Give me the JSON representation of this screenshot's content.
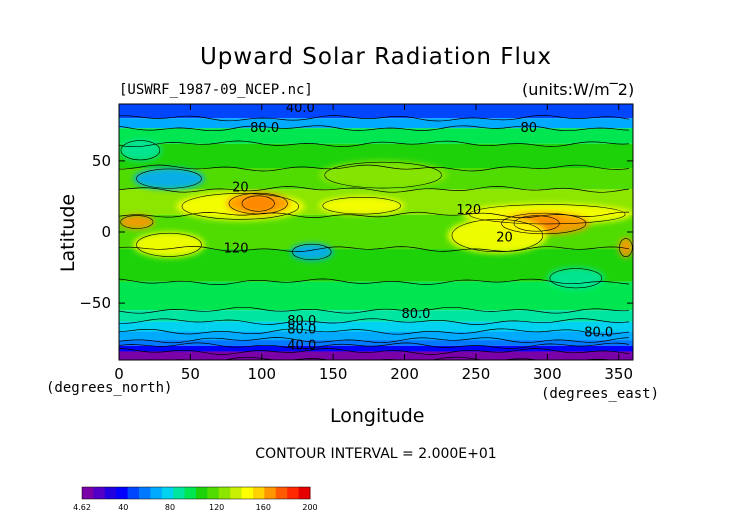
{
  "title": "Upward Solar Radiation Flux",
  "source_label": "[USWRF_1987-09_NCEP.nc]",
  "units_label": "(units:W/m^2)",
  "contour_interval_label": "CONTOUR INTERVAL = 2.000E+01",
  "xunit_left": "(degrees_north)",
  "xunit_right": "(degrees_east)",
  "chart_data": {
    "type": "heatmap",
    "title": "Upward Solar Radiation Flux",
    "xlabel": "Longitude",
    "ylabel": "Latitude",
    "xlim": [
      0,
      360
    ],
    "ylim": [
      -90,
      90
    ],
    "x_ticks": [
      0,
      50,
      100,
      150,
      200,
      250,
      300,
      350
    ],
    "y_ticks": [
      50,
      0,
      -50
    ],
    "y_tick_labels": [
      "50",
      "0",
      "−50"
    ],
    "contour_labels": [
      {
        "text": "40.0",
        "lon": 127,
        "lat": 88
      },
      {
        "text": "80.0",
        "lon": 102,
        "lat": 74
      },
      {
        "text": "80",
        "lon": 287,
        "lat": 74
      },
      {
        "text": "20",
        "lon": 85,
        "lat": 32
      },
      {
        "text": "120",
        "lon": 245,
        "lat": 16
      },
      {
        "text": "20",
        "lon": 270,
        "lat": -3
      },
      {
        "text": "120",
        "lon": 82,
        "lat": -11
      },
      {
        "text": "80.0",
        "lon": 208,
        "lat": -57
      },
      {
        "text": "80.0",
        "lon": 128,
        "lat": -62
      },
      {
        "text": "80.0",
        "lon": 128,
        "lat": -68
      },
      {
        "text": "80.0",
        "lon": 336,
        "lat": -70
      },
      {
        "text": "40.0",
        "lon": 128,
        "lat": -79
      }
    ],
    "grid": false,
    "colorbar": {
      "tick_labels": [
        "4.62",
        "40",
        "80",
        "120",
        "160",
        "200"
      ],
      "tick_values": [
        4.62,
        40,
        80,
        120,
        160,
        200
      ],
      "colors": [
        "#7a00a8",
        "#5200c8",
        "#2000e0",
        "#0000ff",
        "#0046ff",
        "#0078ff",
        "#00aaff",
        "#00d2f0",
        "#00e6a0",
        "#00e650",
        "#1ed20a",
        "#50dc00",
        "#8ce600",
        "#c8f000",
        "#ffff00",
        "#ffd200",
        "#ff9600",
        "#ff5a00",
        "#ff2800",
        "#e60000"
      ]
    },
    "zonal_bands": [
      {
        "lat_min": 80,
        "lat_max": 90,
        "color": "#0046ff"
      },
      {
        "lat_min": 73,
        "lat_max": 80,
        "color": "#00aaff"
      },
      {
        "lat_min": 62,
        "lat_max": 73,
        "color": "#00e650"
      },
      {
        "lat_min": 45,
        "lat_max": 62,
        "color": "#1ed20a"
      },
      {
        "lat_min": 30,
        "lat_max": 45,
        "color": "#50dc00"
      },
      {
        "lat_min": 12,
        "lat_max": 30,
        "color": "#8ce600"
      },
      {
        "lat_min": -12,
        "lat_max": 12,
        "color": "#50dc00"
      },
      {
        "lat_min": -35,
        "lat_max": -12,
        "color": "#1ed20a"
      },
      {
        "lat_min": -55,
        "lat_max": -35,
        "color": "#00e650"
      },
      {
        "lat_min": -63,
        "lat_max": -55,
        "color": "#00e6a0"
      },
      {
        "lat_min": -70,
        "lat_max": -63,
        "color": "#00d2f0"
      },
      {
        "lat_min": -76,
        "lat_max": -70,
        "color": "#00aaff"
      },
      {
        "lat_min": -80,
        "lat_max": -76,
        "color": "#0078ff"
      },
      {
        "lat_min": -84,
        "lat_max": -80,
        "color": "#0000ff"
      },
      {
        "lat_min": -90,
        "lat_max": -84,
        "color": "#7a00a8"
      }
    ],
    "features": [
      {
        "name": "north-africa-yellow",
        "lon": [
          40,
          130
        ],
        "lat": [
          8,
          28
        ],
        "color": "#ffff00"
      },
      {
        "name": "sahara-red",
        "lon": [
          85,
          110
        ],
        "lat": [
          14,
          26
        ],
        "color": "#e60000"
      },
      {
        "name": "sahara-orange",
        "lon": [
          75,
          120
        ],
        "lat": [
          12,
          28
        ],
        "color": "#ff9600"
      },
      {
        "name": "arabia-yellow",
        "lon": [
          140,
          200
        ],
        "lat": [
          12,
          25
        ],
        "color": "#ffff00"
      },
      {
        "name": "pacific-yellow",
        "lon": [
          240,
          360
        ],
        "lat": [
          5,
          20
        ],
        "color": "#ffff00"
      },
      {
        "name": "pacific-red",
        "lon": [
          275,
          310
        ],
        "lat": [
          0,
          12
        ],
        "color": "#e60000"
      },
      {
        "name": "pacific-orange",
        "lon": [
          265,
          330
        ],
        "lat": [
          -2,
          14
        ],
        "color": "#ff9600"
      },
      {
        "name": "atlantic-orange",
        "lon": [
          0,
          25
        ],
        "lat": [
          2,
          12
        ],
        "color": "#ff9600"
      },
      {
        "name": "east-orange",
        "lon": [
          350,
          360
        ],
        "lat": [
          -18,
          -4
        ],
        "color": "#ff9600"
      },
      {
        "name": "indian-cyan",
        "lon": [
          120,
          150
        ],
        "lat": [
          -20,
          -8
        ],
        "color": "#00aaff"
      },
      {
        "name": "siberia-cyan",
        "lon": [
          10,
          60
        ],
        "lat": [
          30,
          45
        ],
        "color": "#00aaff"
      },
      {
        "name": "pacific-blue",
        "lon": [
          300,
          340
        ],
        "lat": [
          -40,
          -25
        ],
        "color": "#00e6a0"
      },
      {
        "name": "sa-yellow",
        "lon": [
          230,
          300
        ],
        "lat": [
          -15,
          10
        ],
        "color": "#ffff00"
      },
      {
        "name": "africa-yellow-s",
        "lon": [
          10,
          60
        ],
        "lat": [
          -18,
          0
        ],
        "color": "#ffff00"
      },
      {
        "name": "asia-green",
        "lon": [
          140,
          230
        ],
        "lat": [
          30,
          50
        ],
        "color": "#8ce600"
      },
      {
        "name": "canada-blue",
        "lon": [
          0,
          30
        ],
        "lat": [
          50,
          65
        ],
        "color": "#00e6a0"
      }
    ]
  }
}
